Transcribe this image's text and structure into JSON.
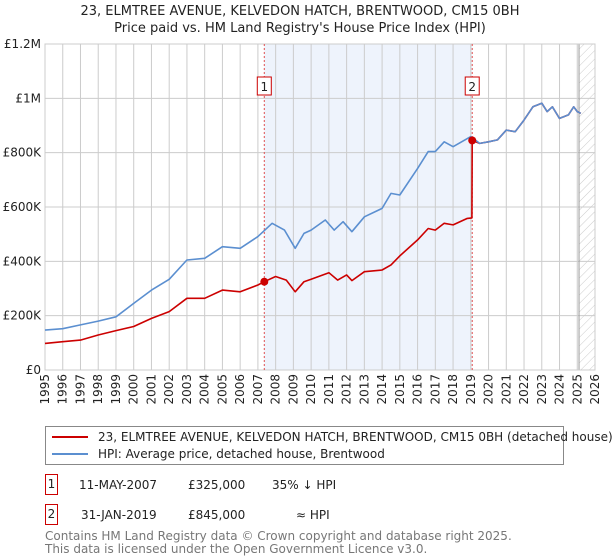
{
  "title_line1": "23, ELMTREE AVENUE, KELVEDON HATCH, BRENTWOOD, CM15 0BH",
  "title_line2": "Price paid vs. HM Land Registry's House Price Index (HPI)",
  "legend": [
    {
      "label": "23, ELMTREE AVENUE, KELVEDON HATCH, BRENTWOOD, CM15 0BH (detached house)",
      "color": "#cc0000"
    },
    {
      "label": "HPI: Average price, detached house, Brentwood",
      "color": "#5b8fd0"
    }
  ],
  "transactions": [
    {
      "num": "1",
      "date": "11-MAY-2007",
      "price": "£325,000",
      "hpi": "35% ↓ HPI"
    },
    {
      "num": "2",
      "date": "31-JAN-2019",
      "price": "£845,000",
      "hpi": "≈ HPI"
    }
  ],
  "footer_line1": "Contains HM Land Registry data © Crown copyright and database right 2025.",
  "footer_line2": "This data is licensed under the Open Government Licence v3.0.",
  "chart_data": {
    "type": "line",
    "title": "Price paid vs. HM Land Registry's House Price Index (HPI)",
    "xlim": [
      1995,
      2026
    ],
    "ylim": [
      0,
      1200000
    ],
    "x_ticks": [
      "1995",
      "1996",
      "1997",
      "1998",
      "1999",
      "2000",
      "2001",
      "2002",
      "2003",
      "2004",
      "2005",
      "2006",
      "2007",
      "2008",
      "2009",
      "2010",
      "2011",
      "2012",
      "2013",
      "2014",
      "2015",
      "2016",
      "2017",
      "2018",
      "2019",
      "2020",
      "2021",
      "2022",
      "2023",
      "2024",
      "2025",
      "2026"
    ],
    "y_ticks": [
      {
        "v": 0,
        "label": "£0"
      },
      {
        "v": 200000,
        "label": "£200K"
      },
      {
        "v": 400000,
        "label": "£400K"
      },
      {
        "v": 600000,
        "label": "£600K"
      },
      {
        "v": 800000,
        "label": "£800K"
      },
      {
        "v": 1000000,
        "label": "£1M"
      },
      {
        "v": 1200000,
        "label": "£1.2M"
      }
    ],
    "grid": true,
    "shaded_period": [
      2007.36,
      2019.08
    ],
    "forecast_hatch_from": 2025.1,
    "series": [
      {
        "name": "HPI: Average price, detached house, Brentwood",
        "color": "#5b8fd0",
        "x": [
          1995,
          1996,
          1997,
          1998,
          1999,
          2000,
          2001,
          2002,
          2003,
          2004,
          2005,
          2006,
          2007,
          2007.8,
          2008.5,
          2009.1,
          2009.6,
          2010,
          2010.8,
          2011.3,
          2011.8,
          2012.3,
          2013,
          2014,
          2014.5,
          2015,
          2016,
          2016.6,
          2017,
          2017.5,
          2018,
          2019,
          2019.5,
          2020,
          2020.5,
          2021,
          2021.5,
          2022,
          2022.5,
          2023,
          2023.3,
          2023.6,
          2024,
          2024.5,
          2024.8,
          2025,
          2025.2
        ],
        "y": [
          147000,
          152000,
          166000,
          180000,
          196000,
          245000,
          294000,
          334000,
          405000,
          411000,
          454000,
          448000,
          491000,
          540000,
          515000,
          448000,
          503000,
          515000,
          552000,
          515000,
          546000,
          509000,
          564000,
          595000,
          650000,
          644000,
          742000,
          804000,
          804000,
          840000,
          822000,
          859000,
          834000,
          840000,
          847000,
          883000,
          877000,
          920000,
          969000,
          982000,
          951000,
          969000,
          926000,
          939000,
          969000,
          951000,
          945000
        ]
      },
      {
        "name": "23, ELMTREE AVENUE, KELVEDON HATCH, BRENTWOOD, CM15 0BH (detached house)",
        "color": "#cc0000",
        "x": [
          1995,
          1996,
          1997,
          1998,
          1999,
          2000,
          2001,
          2002,
          2003,
          2004,
          2005,
          2006,
          2007,
          2007.36,
          2008,
          2008.6,
          2009.1,
          2009.6,
          2010,
          2011,
          2011.5,
          2012,
          2012.3,
          2013,
          2014,
          2014.5,
          2015,
          2016,
          2016.6,
          2017,
          2017.5,
          2018,
          2018.8,
          2019.06,
          2019.08,
          2019.5,
          2020,
          2020.5,
          2021,
          2021.5,
          2022,
          2022.5,
          2023,
          2023.3,
          2023.6,
          2024,
          2024.5,
          2024.8,
          2025,
          2025.2
        ],
        "y": [
          98000,
          104000,
          110000,
          129000,
          145000,
          160000,
          190000,
          215000,
          264000,
          264000,
          294000,
          288000,
          313000,
          325000,
          344000,
          331000,
          288000,
          325000,
          334000,
          358000,
          331000,
          350000,
          329000,
          362000,
          368000,
          387000,
          420000,
          479000,
          521000,
          515000,
          540000,
          534000,
          558000,
          560000,
          845000,
          834000,
          840000,
          847000,
          883000,
          877000,
          920000,
          969000,
          982000,
          951000,
          969000,
          926000,
          939000,
          969000,
          951000,
          945000
        ]
      }
    ],
    "markers": [
      {
        "num": "1",
        "x": 2007.36,
        "y": 325000
      },
      {
        "num": "2",
        "x": 2019.08,
        "y": 845000
      }
    ]
  }
}
